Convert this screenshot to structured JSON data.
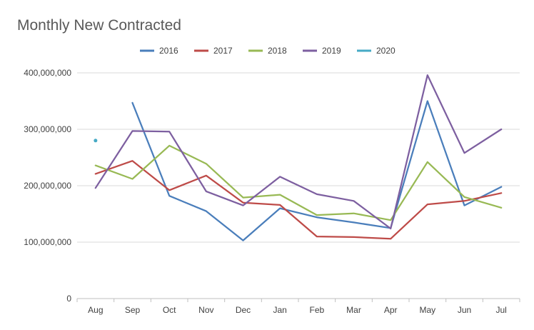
{
  "chart_data": {
    "type": "line",
    "title": "Monthly New Contracted",
    "xlabel": "",
    "ylabel": "",
    "categories": [
      "Aug",
      "Sep",
      "Oct",
      "Nov",
      "Dec",
      "Jan",
      "Feb",
      "Mar",
      "Apr",
      "May",
      "Jun",
      "Jul"
    ],
    "ylim": [
      0,
      400000000
    ],
    "yticks": [
      "0",
      "100,000,000",
      "200,000,000",
      "300,000,000",
      "400,000,000"
    ],
    "ytick_values": [
      0,
      100000000,
      200000000,
      300000000,
      400000000
    ],
    "grid": true,
    "legend_position": "top",
    "series": [
      {
        "name": "2016",
        "color": "#4a7ebb",
        "values": [
          null,
          347000000,
          182000000,
          155000000,
          103000000,
          160000000,
          144000000,
          135000000,
          125000000,
          350000000,
          165000000,
          198000000
        ]
      },
      {
        "name": "2017",
        "color": "#be4b48",
        "values": [
          221000000,
          244000000,
          192000000,
          218000000,
          170000000,
          166000000,
          110000000,
          109000000,
          106000000,
          167000000,
          173000000,
          187000000
        ]
      },
      {
        "name": "2018",
        "color": "#98b954",
        "values": [
          236000000,
          212000000,
          271000000,
          239000000,
          179000000,
          184000000,
          148000000,
          151000000,
          139000000,
          242000000,
          180000000,
          161000000
        ]
      },
      {
        "name": "2019",
        "color": "#7d5fa0",
        "values": [
          196000000,
          297000000,
          296000000,
          190000000,
          165000000,
          216000000,
          185000000,
          173000000,
          124000000,
          396000000,
          258000000,
          300000000
        ]
      },
      {
        "name": "2020",
        "color": "#46aac5",
        "values": [
          280000000,
          null,
          null,
          null,
          null,
          null,
          null,
          null,
          null,
          null,
          null,
          null
        ]
      }
    ]
  }
}
